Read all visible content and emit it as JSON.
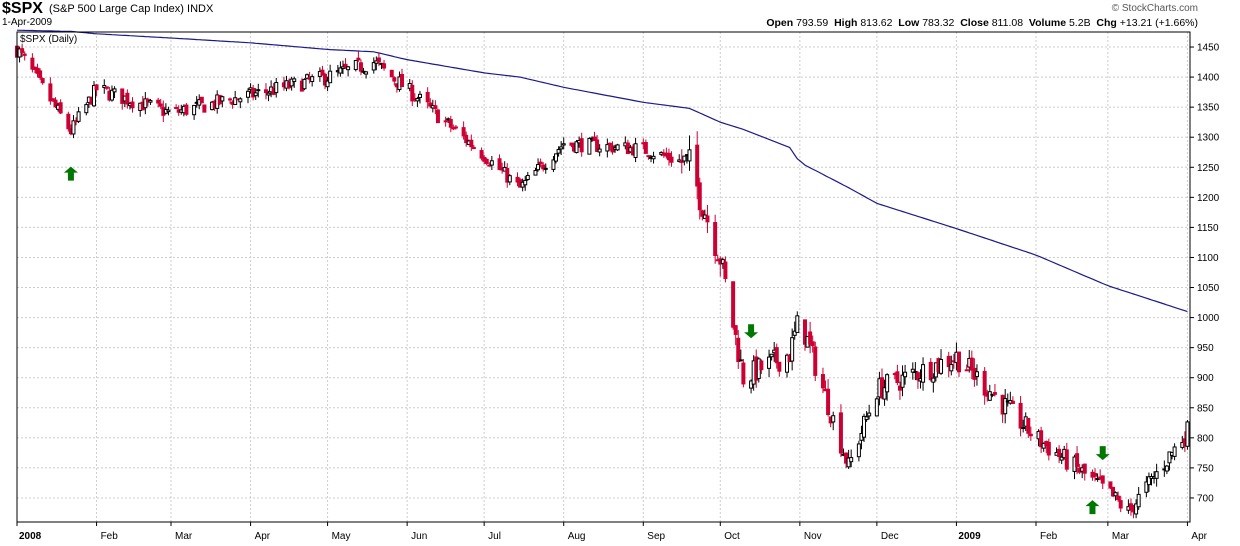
{
  "header": {
    "symbol": "$SPX",
    "name": "(S&P 500 Large Cap Index)",
    "exchange": "INDX",
    "date": "1-Apr-2009",
    "copyright": "© StockCharts.com",
    "open_label": "Open",
    "open": "793.59",
    "high_label": "High",
    "high": "813.62",
    "low_label": "Low",
    "low": "783.32",
    "close_label": "Close",
    "close": "811.08",
    "volume_label": "Volume",
    "volume": "5.2B",
    "chg_label": "Chg",
    "chg": "+13.21 (+1.66%)"
  },
  "panel_label": "$SPX (Daily)",
  "colors": {
    "up": "#000000",
    "down": "#cc0033",
    "ma": "#1a1a8c",
    "arrow": "#007700",
    "grid": "#cccccc"
  },
  "chart_data": {
    "type": "candlestick",
    "title": "$SPX (Daily)",
    "x_ticks": [
      "2008",
      "Feb",
      "Mar",
      "Apr",
      "May",
      "Jun",
      "Jul",
      "Aug",
      "Sep",
      "Oct",
      "Nov",
      "Dec",
      "2009",
      "Feb",
      "Mar",
      "Apr"
    ],
    "y_ticks": [
      700,
      750,
      800,
      850,
      900,
      950,
      1000,
      1050,
      1100,
      1150,
      1200,
      1250,
      1300,
      1350,
      1400,
      1450
    ],
    "ylim": [
      660,
      1475
    ],
    "x": [
      "2008-01",
      "2008-01-22",
      "2008-02",
      "2008-03",
      "2008-04",
      "2008-05",
      "2008-05-19",
      "2008-06",
      "2008-07",
      "2008-07-15",
      "2008-08",
      "2008-09",
      "2008-09-19",
      "2008-10",
      "2008-10-10",
      "2008-10-28",
      "2008-11",
      "2008-11-20",
      "2008-12",
      "2009-01",
      "2009-02",
      "2009-03",
      "2009-03-09",
      "2009-04"
    ],
    "close": [
      1447,
      1310,
      1380,
      1340,
      1370,
      1400,
      1425,
      1380,
      1270,
      1215,
      1290,
      1280,
      1255,
      1100,
      900,
      940,
      1000,
      752,
      880,
      935,
      800,
      710,
      676,
      811
    ],
    "ma_200_day": [
      1478,
      1476,
      1472,
      1465,
      1457,
      1446,
      1442,
      1429,
      1407,
      1400,
      1383,
      1358,
      1348,
      1325,
      1313,
      1283,
      1258,
      1216,
      1190,
      1148,
      1104,
      1053,
      1042,
      1010
    ],
    "grid": true,
    "markers": [
      {
        "type": "up-arrow",
        "date": "2008-01-22"
      },
      {
        "type": "down-arrow",
        "date": "2008-10-13"
      },
      {
        "type": "up-arrow",
        "date": "2009-02-23"
      },
      {
        "type": "down-arrow",
        "date": "2009-02-27"
      }
    ]
  }
}
